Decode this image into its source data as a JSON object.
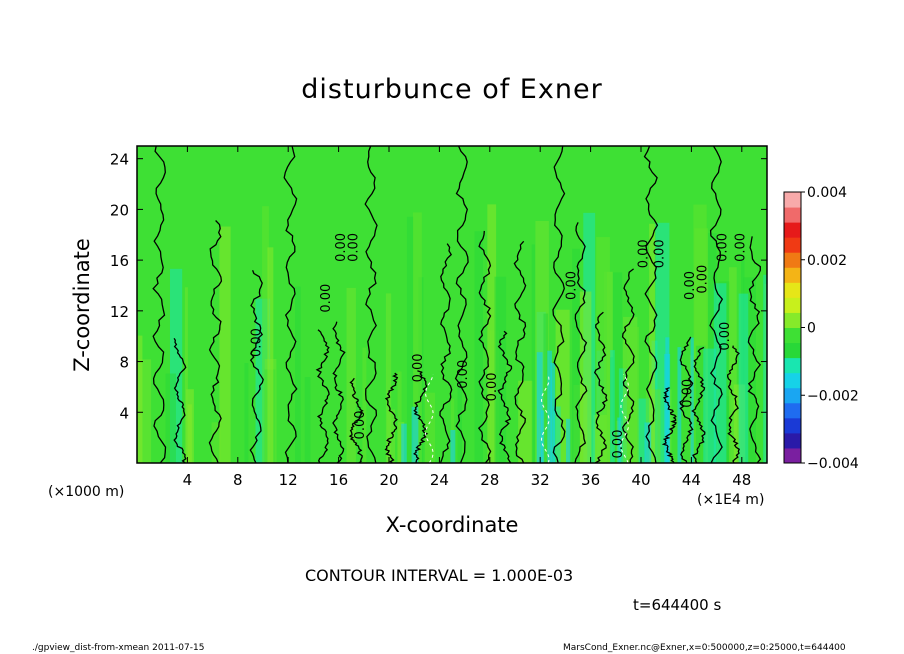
{
  "chart_data": {
    "type": "heatmap",
    "title": "disturbunce of Exner",
    "xlabel": "X-coordinate",
    "ylabel": "Z-coordinate",
    "x_unit_left": "(×1000 m)",
    "x_unit_right": "(×1E4 m)",
    "x_ticks": [
      "4",
      "8",
      "12",
      "16",
      "20",
      "24",
      "28",
      "32",
      "36",
      "40",
      "44",
      "48"
    ],
    "x_tick_values": [
      4,
      8,
      12,
      16,
      20,
      24,
      28,
      32,
      36,
      40,
      44,
      48
    ],
    "y_ticks": [
      "4",
      "8",
      "12",
      "16",
      "20",
      "24"
    ],
    "y_tick_values": [
      4,
      8,
      12,
      16,
      20,
      24
    ],
    "xlim": [
      0,
      50
    ],
    "ylim": [
      0,
      25
    ],
    "colorbar": {
      "ticks": [
        "0.004",
        "0.002",
        "0",
        "−0.002",
        "−0.004"
      ],
      "tick_values": [
        0.004,
        0.002,
        0,
        -0.002,
        -0.004
      ],
      "range": [
        -0.004,
        0.004
      ],
      "colors": [
        "#7a1fa0",
        "#2a1aa8",
        "#1a3ad6",
        "#1f6cf0",
        "#1aa6f2",
        "#16d2e8",
        "#19e6b0",
        "#28d838",
        "#3ee034",
        "#86ea2a",
        "#c8f01c",
        "#e6e618",
        "#f4b416",
        "#f07a14",
        "#f03a14",
        "#e61a1a",
        "#f06a6a",
        "#f8aaaa"
      ]
    },
    "contour_labels": [
      "0.00",
      "0.00",
      "0.00",
      "0.00",
      "0.00",
      "0.00",
      "0.00",
      "0.00",
      "0.00",
      "0.00",
      "0.00",
      "0.00",
      "0.00",
      "0.00",
      "0.00",
      "0.00",
      "0.00",
      "0.00"
    ],
    "contour_label_positions": [
      [
        9.8,
        9.5
      ],
      [
        15.3,
        13.0
      ],
      [
        16.5,
        17.0
      ],
      [
        17.5,
        17.0
      ],
      [
        18.0,
        3.0
      ],
      [
        22.6,
        7.5
      ],
      [
        26.2,
        7.0
      ],
      [
        28.5,
        6.0
      ],
      [
        34.8,
        14.0
      ],
      [
        38.5,
        1.5
      ],
      [
        40.5,
        16.5
      ],
      [
        41.8,
        16.5
      ],
      [
        44.2,
        14.0
      ],
      [
        45.2,
        14.5
      ],
      [
        44.0,
        5.5
      ],
      [
        46.8,
        17.0
      ],
      [
        48.2,
        17.0
      ],
      [
        47.0,
        10.0
      ]
    ],
    "contour_interval": "CONTOUR INTERVAL = 1.000E-03"
  },
  "time_label": "t=644400 s",
  "footer_left": "./gpview_dist-from-xmean  2011-07-15",
  "footer_right": "MarsCond_Exner.nc@Exner,x=0:500000,z=0:25000,t=644400"
}
